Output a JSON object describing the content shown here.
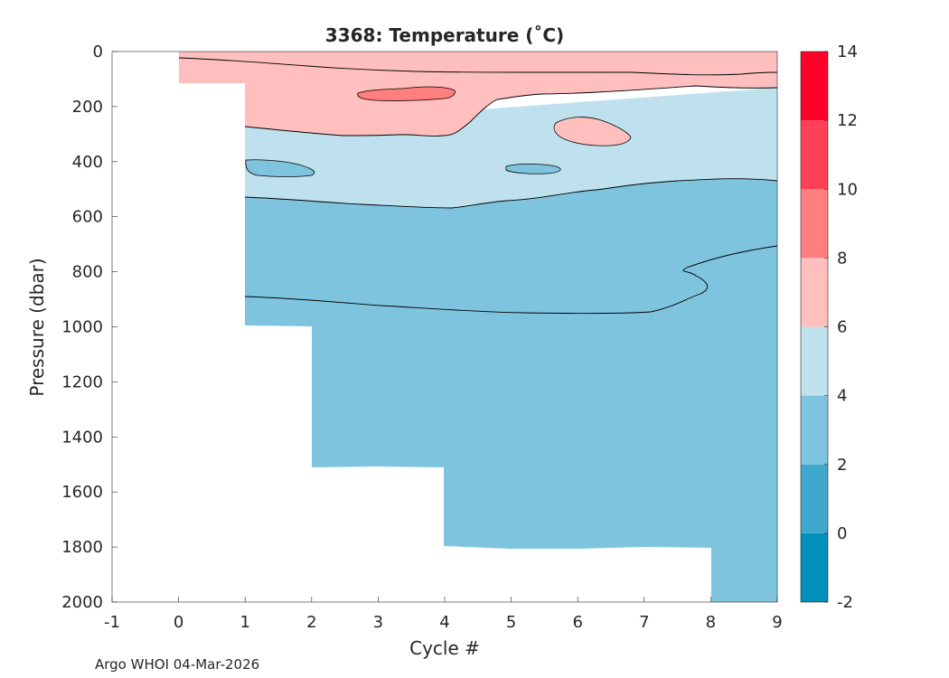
{
  "chart_data": {
    "type": "filled-contour",
    "title": "3368:  Temperature (˚C)",
    "xlabel": "Cycle #",
    "ylabel": "Pressure (dbar)",
    "xlim": [
      -1,
      9
    ],
    "ylim": [
      0,
      2000
    ],
    "y_reversed": true,
    "x_ticks": [
      "-1",
      "0",
      "1",
      "2",
      "3",
      "4",
      "5",
      "6",
      "7",
      "8",
      "9"
    ],
    "y_ticks": [
      "0",
      "200",
      "400",
      "600",
      "800",
      "1000",
      "1200",
      "1400",
      "1600",
      "1800",
      "2000"
    ],
    "contour_levels": [
      -2,
      0,
      2,
      4,
      6,
      8,
      10,
      12,
      14
    ],
    "colorbar": {
      "ticks": [
        "14",
        "12",
        "10",
        "8",
        "6",
        "4",
        "2",
        "0",
        "-2"
      ],
      "bands": [
        {
          "from": -2,
          "to": 0,
          "color": "#0090bc"
        },
        {
          "from": 0,
          "to": 2,
          "color": "#3fa8cd"
        },
        {
          "from": 2,
          "to": 4,
          "color": "#7fc4de"
        },
        {
          "from": 4,
          "to": 6,
          "color": "#bfe1ee"
        },
        {
          "from": 6,
          "to": 8,
          "color": "#ffbfbf"
        },
        {
          "from": 8,
          "to": 10,
          "color": "#ff7f7f"
        },
        {
          "from": 10,
          "to": 12,
          "color": "#ff4055"
        },
        {
          "from": 12,
          "to": 14,
          "color": "#ff0028"
        }
      ]
    },
    "profile_max_pressure": [
      {
        "cycle": 0,
        "max_pressure": 110
      },
      {
        "cycle": 1,
        "max_pressure": 1000
      },
      {
        "cycle": 2,
        "max_pressure": 1515
      },
      {
        "cycle": 3,
        "max_pressure": 1510
      },
      {
        "cycle": 4,
        "max_pressure": 1800
      },
      {
        "cycle": 5,
        "max_pressure": 1810
      },
      {
        "cycle": 6,
        "max_pressure": 1810
      },
      {
        "cycle": 7,
        "max_pressure": 1805
      },
      {
        "cycle": 8,
        "max_pressure": 2000
      },
      {
        "cycle": 9,
        "max_pressure": 2000
      }
    ],
    "isotherm_6C_depth": [
      {
        "cycle": 0,
        "pressure": 110
      },
      {
        "cycle": 1,
        "pressure": 260
      },
      {
        "cycle": 2,
        "pressure": 290
      },
      {
        "cycle": 3,
        "pressure": 300
      },
      {
        "cycle": 4,
        "pressure": 270
      },
      {
        "cycle": 5,
        "pressure": 160
      },
      {
        "cycle": 6,
        "pressure": 150
      },
      {
        "cycle": 7,
        "pressure": 140
      },
      {
        "cycle": 8,
        "pressure": 130
      },
      {
        "cycle": 9,
        "pressure": 130
      }
    ],
    "isotherm_4C_depth": [
      {
        "cycle": 1,
        "pressure": 530
      },
      {
        "cycle": 2,
        "pressure": 545
      },
      {
        "cycle": 3,
        "pressure": 540
      },
      {
        "cycle": 4,
        "pressure": 545
      },
      {
        "cycle": 5,
        "pressure": 510
      },
      {
        "cycle": 6,
        "pressure": 500
      },
      {
        "cycle": 7,
        "pressure": 470
      },
      {
        "cycle": 8,
        "pressure": 430
      },
      {
        "cycle": 9,
        "pressure": 480
      }
    ],
    "warm_core_8C": [
      {
        "cycle": 3.3,
        "pressure_top": 130,
        "pressure_bottom": 180
      },
      {
        "cycle": 6.1,
        "pressure_top": 240,
        "pressure_bottom": 340
      }
    ],
    "cold_patch_2C": [
      {
        "cycle": 1.2,
        "pressure_top": 400,
        "pressure_bottom": 460
      },
      {
        "cycle": 5.3,
        "pressure_top": 400,
        "pressure_bottom": 440
      }
    ]
  },
  "footer": {
    "credit": "Argo WHOI 04-Mar-2026"
  }
}
